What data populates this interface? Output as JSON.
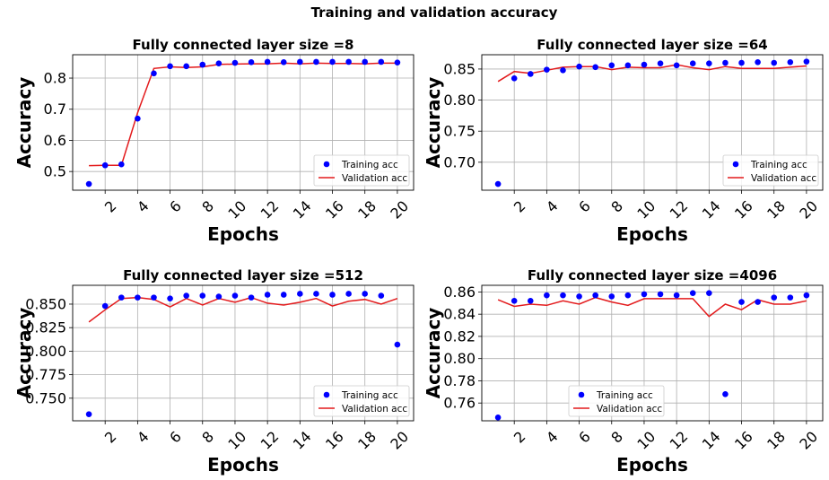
{
  "figure": {
    "suptitle": "Training and validation accuracy"
  },
  "colors": {
    "training": "#0000ff",
    "validation": "#e31a1c",
    "grid": "#b0b0b0"
  },
  "chart_data": [
    {
      "type": "scatter+line",
      "title": "Fully connected layer size =8",
      "xlabel": "Epochs",
      "ylabel": "Accuracy",
      "xlim": [
        0,
        21
      ],
      "ylim": [
        0.44,
        0.875
      ],
      "xticks": [
        2,
        4,
        6,
        8,
        10,
        12,
        14,
        16,
        18,
        20
      ],
      "yticks": [
        0.5,
        0.6,
        0.7,
        0.8
      ],
      "grid": true,
      "legend_position": "bottom-right",
      "series": [
        {
          "name": "Training acc",
          "style": "markers",
          "x": [
            1,
            2,
            3,
            4,
            5,
            6,
            7,
            8,
            9,
            10,
            11,
            12,
            13,
            14,
            15,
            16,
            17,
            18,
            19,
            20
          ],
          "y": [
            0.46,
            0.52,
            0.523,
            0.67,
            0.815,
            0.838,
            0.838,
            0.843,
            0.847,
            0.849,
            0.851,
            0.852,
            0.851,
            0.852,
            0.852,
            0.852,
            0.852,
            0.852,
            0.852,
            0.85
          ]
        },
        {
          "name": "Validation acc",
          "style": "line",
          "x": [
            1,
            2,
            3,
            4,
            5,
            6,
            7,
            8,
            9,
            10,
            11,
            12,
            13,
            14,
            15,
            16,
            17,
            18,
            19,
            20
          ],
          "y": [
            0.519,
            0.52,
            0.52,
            0.689,
            0.831,
            0.836,
            0.834,
            0.836,
            0.844,
            0.845,
            0.846,
            0.846,
            0.848,
            0.846,
            0.848,
            0.847,
            0.847,
            0.846,
            0.848,
            0.848
          ]
        }
      ]
    },
    {
      "type": "scatter+line",
      "title": "Fully connected layer size =64",
      "xlabel": "Epochs",
      "ylabel": "Accuracy",
      "xlim": [
        0,
        21
      ],
      "ylim": [
        0.655,
        0.873
      ],
      "xticks": [
        2,
        4,
        6,
        8,
        10,
        12,
        14,
        16,
        18,
        20
      ],
      "yticks": [
        0.7,
        0.75,
        0.8,
        0.85
      ],
      "grid": true,
      "legend_position": "bottom-right",
      "series": [
        {
          "name": "Training acc",
          "style": "markers",
          "x": [
            1,
            2,
            3,
            4,
            5,
            6,
            7,
            8,
            9,
            10,
            11,
            12,
            13,
            14,
            15,
            16,
            17,
            18,
            19,
            20
          ],
          "y": [
            0.665,
            0.835,
            0.842,
            0.849,
            0.848,
            0.854,
            0.853,
            0.856,
            0.856,
            0.857,
            0.859,
            0.856,
            0.859,
            0.859,
            0.86,
            0.86,
            0.861,
            0.86,
            0.861,
            0.862
          ]
        },
        {
          "name": "Validation acc",
          "style": "line",
          "x": [
            1,
            2,
            3,
            4,
            5,
            6,
            7,
            8,
            9,
            10,
            11,
            12,
            13,
            14,
            15,
            16,
            17,
            18,
            19,
            20
          ],
          "y": [
            0.83,
            0.846,
            0.843,
            0.848,
            0.853,
            0.854,
            0.854,
            0.849,
            0.853,
            0.852,
            0.852,
            0.857,
            0.852,
            0.849,
            0.854,
            0.851,
            0.851,
            0.851,
            0.853,
            0.855
          ]
        }
      ]
    },
    {
      "type": "scatter+line",
      "title": "Fully connected layer size =512",
      "xlabel": "Epochs",
      "ylabel": "Accuracy",
      "xlim": [
        0,
        21
      ],
      "ylim": [
        0.726,
        0.87
      ],
      "xticks": [
        2,
        4,
        6,
        8,
        10,
        12,
        14,
        16,
        18,
        20
      ],
      "yticks": [
        0.75,
        0.775,
        0.8,
        0.825,
        0.85
      ],
      "grid": true,
      "legend_position": "bottom-right",
      "series": [
        {
          "name": "Training acc",
          "style": "markers",
          "x": [
            1,
            2,
            3,
            4,
            5,
            6,
            7,
            8,
            9,
            10,
            11,
            12,
            13,
            14,
            15,
            16,
            17,
            18,
            19,
            20
          ],
          "y": [
            0.733,
            0.848,
            0.857,
            0.857,
            0.857,
            0.856,
            0.859,
            0.859,
            0.858,
            0.859,
            0.857,
            0.86,
            0.86,
            0.861,
            0.861,
            0.86,
            0.861,
            0.861,
            0.859,
            0.807
          ]
        },
        {
          "name": "Validation acc",
          "style": "line",
          "x": [
            1,
            2,
            3,
            4,
            5,
            6,
            7,
            8,
            9,
            10,
            11,
            12,
            13,
            14,
            15,
            16,
            17,
            18,
            19,
            20
          ],
          "y": [
            0.831,
            0.844,
            0.856,
            0.857,
            0.855,
            0.847,
            0.856,
            0.849,
            0.856,
            0.852,
            0.857,
            0.851,
            0.849,
            0.852,
            0.856,
            0.848,
            0.853,
            0.855,
            0.85,
            0.856
          ]
        }
      ]
    },
    {
      "type": "scatter+line",
      "title": "Fully connected layer size =4096",
      "xlabel": "Epochs",
      "ylabel": "Accuracy",
      "xlim": [
        0,
        21
      ],
      "ylim": [
        0.744,
        0.866
      ],
      "xticks": [
        2,
        4,
        6,
        8,
        10,
        12,
        14,
        16,
        18,
        20
      ],
      "yticks": [
        0.76,
        0.78,
        0.8,
        0.82,
        0.84,
        0.86
      ],
      "grid": true,
      "legend_position": "bottom-center",
      "series": [
        {
          "name": "Training acc",
          "style": "markers",
          "x": [
            1,
            2,
            3,
            4,
            5,
            6,
            7,
            8,
            9,
            10,
            11,
            12,
            13,
            14,
            15,
            16,
            17,
            18,
            19,
            20
          ],
          "y": [
            0.747,
            0.852,
            0.852,
            0.857,
            0.857,
            0.856,
            0.857,
            0.856,
            0.857,
            0.858,
            0.858,
            0.857,
            0.859,
            0.859,
            0.768,
            0.851,
            0.851,
            0.855,
            0.855,
            0.857
          ]
        },
        {
          "name": "Validation acc",
          "style": "line",
          "x": [
            1,
            2,
            3,
            4,
            5,
            6,
            7,
            8,
            9,
            10,
            11,
            12,
            13,
            14,
            15,
            16,
            17,
            18,
            19,
            20
          ],
          "y": [
            0.853,
            0.847,
            0.849,
            0.848,
            0.852,
            0.849,
            0.855,
            0.851,
            0.848,
            0.854,
            0.854,
            0.854,
            0.854,
            0.838,
            0.849,
            0.844,
            0.853,
            0.849,
            0.849,
            0.852
          ]
        }
      ]
    }
  ]
}
